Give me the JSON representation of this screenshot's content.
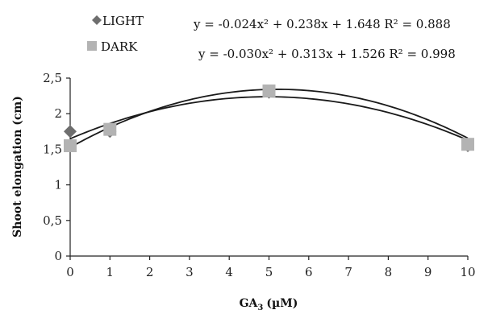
{
  "chart_data": {
    "type": "scatter",
    "xlabel": "GA",
    "xlabel_sub": "3",
    "xlabel_unit": "(µM)",
    "ylabel": "Shoot elongation (cm)",
    "xlim": [
      0,
      10
    ],
    "ylim": [
      0,
      2.5
    ],
    "x_ticks": [
      "0",
      "1",
      "2",
      "3",
      "4",
      "5",
      "6",
      "7",
      "8",
      "9",
      "10"
    ],
    "y_ticks": [
      "0",
      "0,5",
      "1",
      "1,5",
      "2",
      "2,5"
    ],
    "grid": false,
    "legend_position": "top-left",
    "series": [
      {
        "name": "LIGHT",
        "marker": "diamond",
        "color": "#6e6e6e",
        "x": [
          0,
          1,
          5,
          10
        ],
        "y": [
          1.75,
          1.75,
          2.3,
          1.55
        ],
        "trendline": {
          "a": -0.024,
          "b": 0.238,
          "c": 1.648
        },
        "equation": "y = -0.024x² + 0.238x + 1.648 R² = 0.888"
      },
      {
        "name": "DARK",
        "marker": "square",
        "color": "#b3b3b3",
        "x": [
          0,
          1,
          5,
          10
        ],
        "y": [
          1.55,
          1.78,
          2.32,
          1.57
        ],
        "trendline": {
          "a": -0.03,
          "b": 0.313,
          "c": 1.526
        },
        "equation": "y = -0.030x² + 0.313x + 1.526 R² = 0.998"
      }
    ]
  }
}
